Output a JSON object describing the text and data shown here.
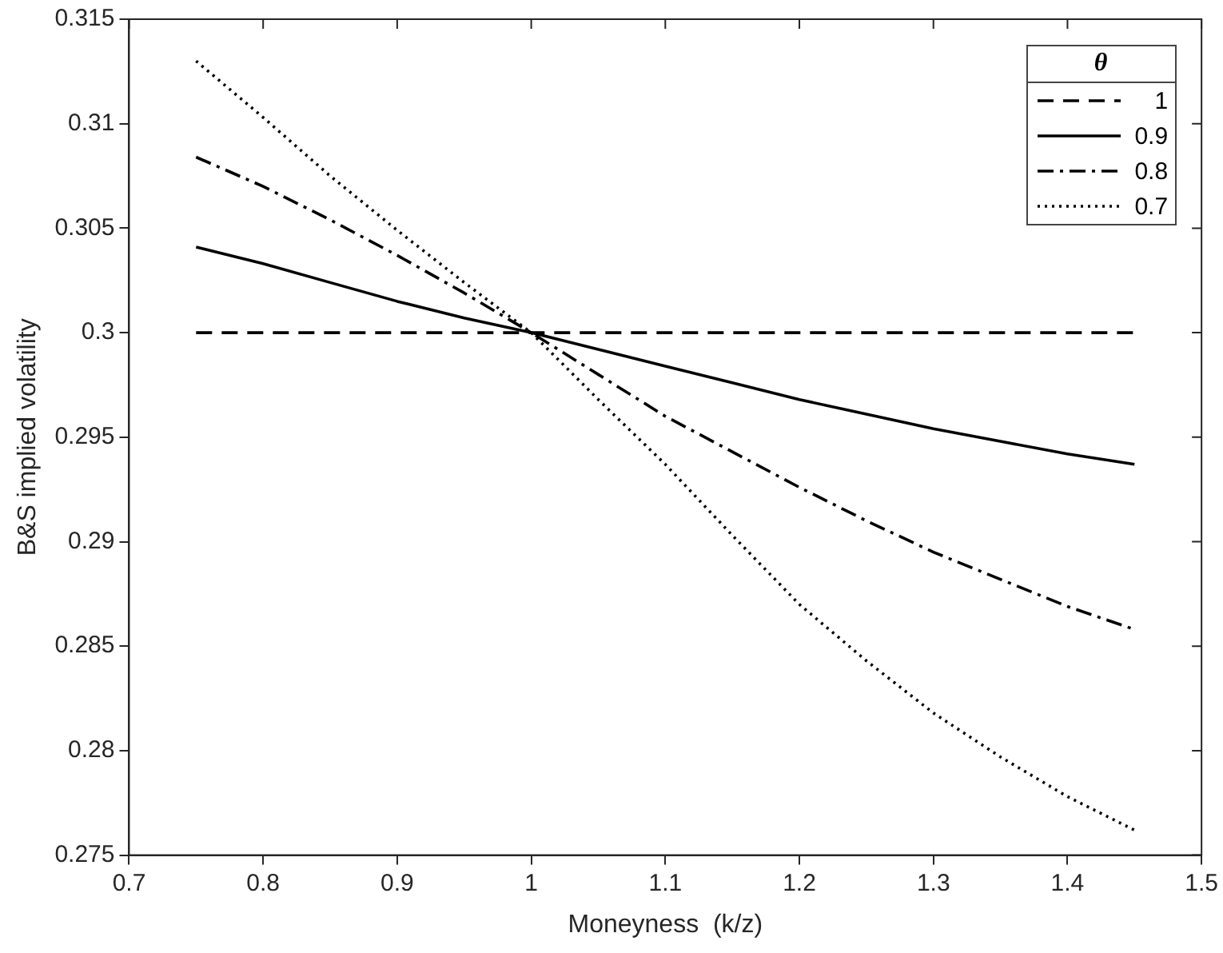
{
  "chart_data": {
    "type": "line",
    "xlabel": "Moneyness  (k/z)",
    "ylabel": "B&S implied volatility",
    "legend_title": "θ",
    "legend": "top right",
    "grid": false,
    "marker": "none",
    "x": [
      0.75,
      0.8,
      0.85,
      0.9,
      0.95,
      1.0,
      1.05,
      1.1,
      1.15,
      1.2,
      1.25,
      1.3,
      1.35,
      1.4,
      1.45
    ],
    "xlim": [
      0.7,
      1.5
    ],
    "xticks": [
      0.7,
      0.8,
      0.9,
      1,
      1.1,
      1.2,
      1.3,
      1.4,
      1.5
    ],
    "ylim": [
      0.275,
      0.315
    ],
    "yticks": [
      0.275,
      0.28,
      0.285,
      0.29,
      0.295,
      0.3,
      0.305,
      0.31,
      0.315
    ],
    "series": [
      {
        "name": "1",
        "color": "#000000",
        "line_style": "dashed",
        "values": [
          0.3,
          0.3,
          0.3,
          0.3,
          0.3,
          0.3,
          0.3,
          0.3,
          0.3,
          0.3,
          0.3,
          0.3,
          0.3,
          0.3,
          0.3
        ]
      },
      {
        "name": "0.9",
        "color": "#000000",
        "line_style": "solid",
        "values": [
          0.3041,
          0.3033,
          0.3024,
          0.3015,
          0.3007,
          0.3,
          0.2992,
          0.2984,
          0.2976,
          0.2968,
          0.2961,
          0.2954,
          0.2948,
          0.2942,
          0.2937
        ]
      },
      {
        "name": "0.8",
        "color": "#000000",
        "line_style": "dashdot",
        "values": [
          0.3084,
          0.307,
          0.3054,
          0.3037,
          0.3019,
          0.3,
          0.298,
          0.296,
          0.2943,
          0.2926,
          0.291,
          0.2895,
          0.2882,
          0.2869,
          0.2858
        ]
      },
      {
        "name": "0.7",
        "color": "#000000",
        "line_style": "dotted",
        "values": [
          0.313,
          0.3103,
          0.3075,
          0.3049,
          0.3024,
          0.3,
          0.2968,
          0.2937,
          0.2903,
          0.287,
          0.2843,
          0.2818,
          0.2797,
          0.2778,
          0.2762
        ]
      }
    ]
  }
}
